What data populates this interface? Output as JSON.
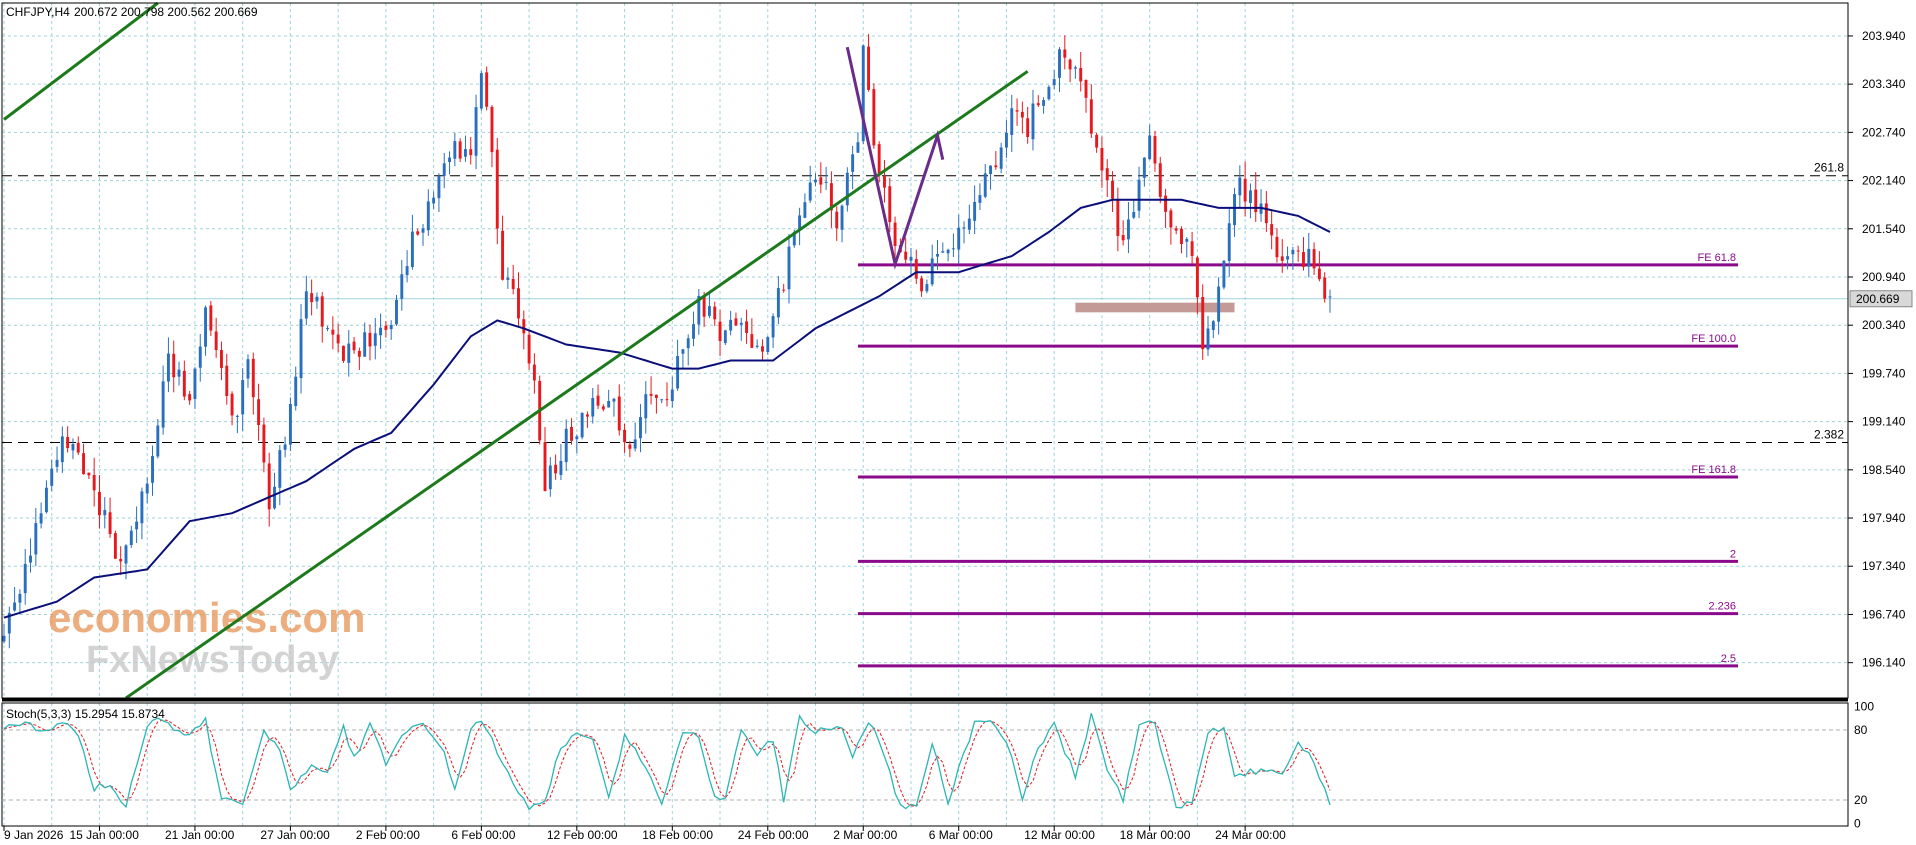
{
  "header": {
    "symbol_label": "CHFJPY,H4",
    "ohlc_text": "200.672 200.798 200.562 200.669"
  },
  "watermark": {
    "line1": "economies.com",
    "line2": "FxNewsToday"
  },
  "stoch": {
    "label": "Stoch(5,3,3) 15.2954 15.8734",
    "levels": [
      "100",
      "80",
      "20",
      "0"
    ]
  },
  "current_price": "200.669",
  "colors": {
    "up": "#2a6fbf",
    "down": "#e8191e",
    "ma": "#0a0f7a",
    "trend": "#1c7a1c",
    "fib": "#8b0a8b",
    "grid": "#9fd3dc",
    "pattern": "#6a2c8a",
    "zone": "#c49a96",
    "stoch_main": "#2bb5b5",
    "stoch_signal": "#e8191e",
    "price_box": "#d8d8d8"
  },
  "chart_data": [
    {
      "type": "candlestick",
      "title": "CHFJPY,H4",
      "ylim": [
        195.7,
        204.35
      ],
      "y_ticks": [
        "203.940",
        "203.340",
        "202.740",
        "202.140",
        "201.540",
        "200.940",
        "200.340",
        "199.740",
        "199.140",
        "198.540",
        "197.940",
        "197.340",
        "196.740",
        "196.140"
      ],
      "x_ticks": [
        "9 Jan 2026",
        "15 Jan 00:00",
        "21 Jan 00:00",
        "27 Jan 00:00",
        "2 Feb 00:00",
        "6 Feb 00:00",
        "12 Feb 00:00",
        "18 Feb 00:00",
        "24 Feb 00:00",
        "2 Mar 00:00",
        "6 Mar 00:00",
        "12 Mar 00:00",
        "18 Mar 00:00",
        "24 Mar 00:00"
      ],
      "price_path": [
        [
          0,
          196.4
        ],
        [
          5,
          197.5
        ],
        [
          10,
          198.8
        ],
        [
          12,
          198.9
        ],
        [
          17,
          198.3
        ],
        [
          20,
          197.7
        ],
        [
          22,
          197.4
        ],
        [
          27,
          198.3
        ],
        [
          31,
          199.9
        ],
        [
          35,
          199.5
        ],
        [
          38,
          200.6
        ],
        [
          43,
          199.1
        ],
        [
          46,
          199.8
        ],
        [
          50,
          198.2
        ],
        [
          53,
          198.9
        ],
        [
          57,
          200.8
        ],
        [
          62,
          200.2
        ],
        [
          66,
          199.9
        ],
        [
          69,
          200.2
        ],
        [
          73,
          200.4
        ],
        [
          77,
          201.4
        ],
        [
          81,
          202.0
        ],
        [
          84,
          202.5
        ],
        [
          88,
          202.6
        ],
        [
          90,
          203.5
        ],
        [
          92,
          202.4
        ],
        [
          94,
          201.0
        ],
        [
          97,
          200.5
        ],
        [
          100,
          199.5
        ],
        [
          102,
          198.3
        ],
        [
          106,
          198.9
        ],
        [
          110,
          199.3
        ],
        [
          114,
          199.4
        ],
        [
          118,
          198.9
        ],
        [
          122,
          199.6
        ],
        [
          125,
          199.3
        ],
        [
          127,
          199.9
        ],
        [
          131,
          200.7
        ],
        [
          135,
          200.2
        ],
        [
          138,
          200.3
        ],
        [
          141,
          200.1
        ],
        [
          144,
          200.1
        ],
        [
          148,
          201.2
        ],
        [
          152,
          202.1
        ],
        [
          154,
          202.1
        ],
        [
          157,
          201.7
        ],
        [
          161,
          202.6
        ],
        [
          162,
          203.8
        ],
        [
          164,
          202.6
        ],
        [
          167,
          201.6
        ],
        [
          171,
          201.1
        ],
        [
          173,
          200.7
        ],
        [
          177,
          201.4
        ],
        [
          180,
          201.4
        ],
        [
          183,
          201.9
        ],
        [
          187,
          202.4
        ],
        [
          190,
          203.0
        ],
        [
          193,
          202.8
        ],
        [
          195,
          203.2
        ],
        [
          198,
          203.5
        ],
        [
          200,
          203.8
        ],
        [
          203,
          203.4
        ],
        [
          206,
          202.4
        ],
        [
          209,
          201.9
        ],
        [
          211,
          201.3
        ],
        [
          214,
          202.2
        ],
        [
          216,
          202.6
        ],
        [
          219,
          201.8
        ],
        [
          221,
          201.4
        ],
        [
          224,
          201.2
        ],
        [
          226,
          200.2
        ],
        [
          229,
          200.7
        ],
        [
          232,
          202.1
        ],
        [
          235,
          201.9
        ],
        [
          239,
          201.5
        ],
        [
          241,
          201.1
        ],
        [
          244,
          201.2
        ],
        [
          246,
          201.2
        ],
        [
          248,
          200.8
        ],
        [
          250,
          200.6
        ]
      ],
      "ma_path": [
        [
          0,
          196.7
        ],
        [
          10,
          196.9
        ],
        [
          17,
          197.2
        ],
        [
          27,
          197.3
        ],
        [
          35,
          197.9
        ],
        [
          43,
          198.0
        ],
        [
          50,
          198.2
        ],
        [
          57,
          198.4
        ],
        [
          66,
          198.8
        ],
        [
          73,
          199.0
        ],
        [
          81,
          199.6
        ],
        [
          88,
          200.2
        ],
        [
          93,
          200.4
        ],
        [
          98,
          200.3
        ],
        [
          106,
          200.1
        ],
        [
          116,
          200.0
        ],
        [
          126,
          199.8
        ],
        [
          131,
          199.8
        ],
        [
          137,
          199.9
        ],
        [
          145,
          199.9
        ],
        [
          153,
          200.3
        ],
        [
          165,
          200.7
        ],
        [
          172,
          201.0
        ],
        [
          180,
          201.0
        ],
        [
          190,
          201.2
        ],
        [
          197,
          201.5
        ],
        [
          203,
          201.8
        ],
        [
          209,
          201.9
        ],
        [
          216,
          201.9
        ],
        [
          222,
          201.9
        ],
        [
          229,
          201.8
        ],
        [
          237,
          201.8
        ],
        [
          244,
          201.7
        ],
        [
          250,
          201.5
        ]
      ],
      "stoch_path": [
        [
          0,
          82
        ],
        [
          4,
          85
        ],
        [
          8,
          80
        ],
        [
          11,
          86
        ],
        [
          14,
          75
        ],
        [
          17,
          30
        ],
        [
          20,
          35
        ],
        [
          23,
          15
        ],
        [
          27,
          85
        ],
        [
          30,
          90
        ],
        [
          34,
          75
        ],
        [
          38,
          88
        ],
        [
          41,
          20
        ],
        [
          45,
          15
        ],
        [
          49,
          80
        ],
        [
          52,
          62
        ],
        [
          54,
          30
        ],
        [
          58,
          50
        ],
        [
          61,
          42
        ],
        [
          64,
          82
        ],
        [
          66,
          55
        ],
        [
          69,
          85
        ],
        [
          72,
          50
        ],
        [
          76,
          80
        ],
        [
          79,
          85
        ],
        [
          83,
          60
        ],
        [
          85,
          30
        ],
        [
          88,
          80
        ],
        [
          90,
          90
        ],
        [
          93,
          62
        ],
        [
          96,
          35
        ],
        [
          99,
          12
        ],
        [
          102,
          20
        ],
        [
          105,
          65
        ],
        [
          108,
          80
        ],
        [
          111,
          70
        ],
        [
          114,
          20
        ],
        [
          117,
          75
        ],
        [
          121,
          50
        ],
        [
          124,
          15
        ],
        [
          128,
          80
        ],
        [
          131,
          72
        ],
        [
          134,
          22
        ],
        [
          136,
          20
        ],
        [
          139,
          80
        ],
        [
          142,
          60
        ],
        [
          145,
          72
        ],
        [
          147,
          20
        ],
        [
          150,
          90
        ],
        [
          153,
          80
        ],
        [
          158,
          82
        ],
        [
          160,
          55
        ],
        [
          163,
          88
        ],
        [
          165,
          72
        ],
        [
          169,
          14
        ],
        [
          172,
          15
        ],
        [
          175,
          70
        ],
        [
          178,
          15
        ],
        [
          180,
          50
        ],
        [
          183,
          85
        ],
        [
          186,
          90
        ],
        [
          189,
          70
        ],
        [
          192,
          22
        ],
        [
          195,
          65
        ],
        [
          198,
          85
        ],
        [
          202,
          40
        ],
        [
          205,
          92
        ],
        [
          208,
          48
        ],
        [
          211,
          20
        ],
        [
          214,
          85
        ],
        [
          217,
          85
        ],
        [
          221,
          15
        ],
        [
          224,
          18
        ],
        [
          227,
          78
        ],
        [
          230,
          82
        ],
        [
          232,
          40
        ],
        [
          235,
          45
        ],
        [
          239,
          44
        ],
        [
          241,
          40
        ],
        [
          244,
          70
        ],
        [
          247,
          52
        ],
        [
          250,
          16
        ]
      ],
      "trendlines": [
        {
          "from": [
            0,
            202.9
          ],
          "to": [
            29,
            204.35
          ]
        },
        {
          "from": [
            23,
            195.7
          ],
          "to": [
            193,
            203.5
          ]
        }
      ],
      "horizontal_levels": [
        {
          "label": "261.8",
          "value": 202.2,
          "style": "dashed"
        },
        {
          "label": "2.382",
          "value": 198.88,
          "style": "dashed"
        }
      ],
      "fib_levels": [
        {
          "label": "FE 61.8",
          "value": 201.09
        },
        {
          "label": "FE 100.0",
          "value": 200.08
        },
        {
          "label": "FE 161.8",
          "value": 198.45
        },
        {
          "label": "2",
          "value": 197.4
        },
        {
          "label": "2.236",
          "value": 196.75
        },
        {
          "label": "2.5",
          "value": 196.1
        }
      ],
      "pattern_points": [
        [
          159,
          203.8
        ],
        [
          168,
          201.1
        ],
        [
          176,
          202.7
        ],
        [
          177,
          202.4
        ]
      ],
      "support_zone": {
        "from": 202,
        "to": 232,
        "low": 200.5,
        "high": 200.62
      }
    }
  ]
}
